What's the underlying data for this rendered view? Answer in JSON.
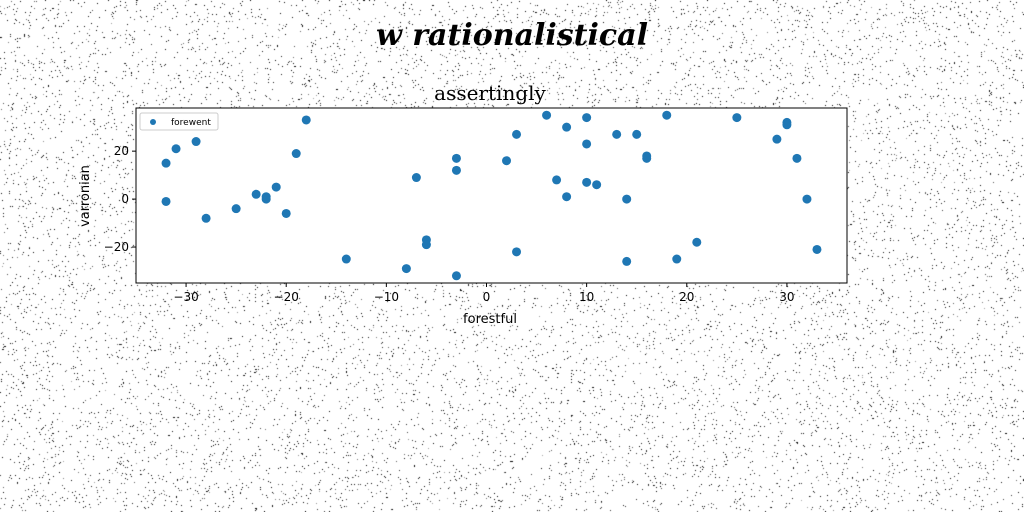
{
  "figure_title": "w rationalistical",
  "chart_data": {
    "type": "scatter",
    "title": "assertingly",
    "xlabel": "forestful",
    "ylabel": "varronian",
    "xlim": [
      -35,
      36
    ],
    "ylim": [
      -35,
      38
    ],
    "xticks": [
      -30,
      -20,
      -10,
      0,
      10,
      20,
      30
    ],
    "yticks": [
      -20,
      0,
      20
    ],
    "grid": false,
    "legend": "top-left",
    "series": [
      {
        "name": "forewent",
        "color": "#1f77b4",
        "points": [
          [
            -32,
            15
          ],
          [
            -32,
            -1
          ],
          [
            -31,
            21
          ],
          [
            -29,
            24
          ],
          [
            -28,
            -8
          ],
          [
            -25,
            -4
          ],
          [
            -23,
            2
          ],
          [
            -22,
            1
          ],
          [
            -22,
            0
          ],
          [
            -21,
            5
          ],
          [
            -20,
            -6
          ],
          [
            -19,
            19
          ],
          [
            -18,
            33
          ],
          [
            -14,
            -25
          ],
          [
            -8,
            -29
          ],
          [
            -7,
            9
          ],
          [
            -6,
            -17
          ],
          [
            -6,
            -19
          ],
          [
            -3,
            17
          ],
          [
            -3,
            12
          ],
          [
            -3,
            -32
          ],
          [
            2,
            16
          ],
          [
            3,
            27
          ],
          [
            3,
            -22
          ],
          [
            6,
            35
          ],
          [
            7,
            8
          ],
          [
            8,
            30
          ],
          [
            8,
            1
          ],
          [
            10,
            34
          ],
          [
            10,
            23
          ],
          [
            10,
            7
          ],
          [
            11,
            6
          ],
          [
            13,
            27
          ],
          [
            14,
            0
          ],
          [
            14,
            -26
          ],
          [
            15,
            27
          ],
          [
            16,
            18
          ],
          [
            16,
            17
          ],
          [
            18,
            35
          ],
          [
            19,
            -25
          ],
          [
            21,
            -18
          ],
          [
            25,
            34
          ],
          [
            29,
            25
          ],
          [
            30,
            32
          ],
          [
            30,
            31
          ],
          [
            31,
            17
          ],
          [
            32,
            0
          ],
          [
            33,
            -21
          ]
        ]
      }
    ]
  }
}
